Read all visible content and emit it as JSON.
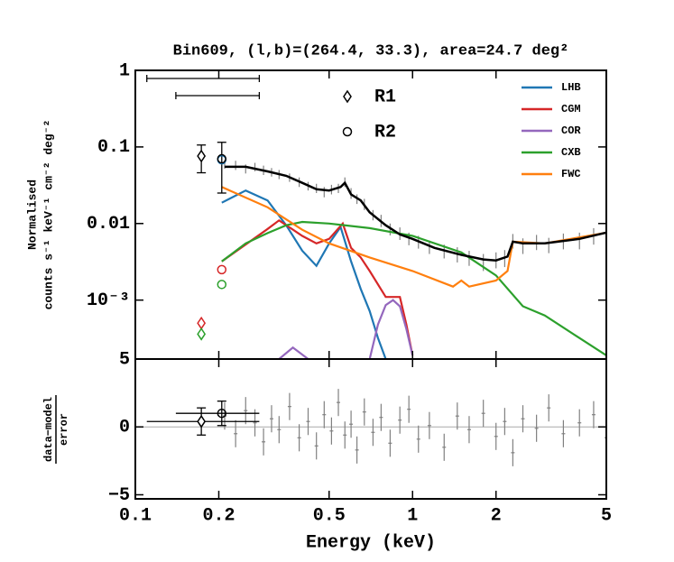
{
  "chart_data": {
    "type": "line",
    "title": "Bin609, (l,b)=(264.4, 33.3), area=24.7 deg²",
    "ylabel": [
      "Normalised",
      "counts s⁻¹ keV⁻¹ cm⁻² deg⁻²"
    ],
    "xlabel": "Energy (keV)",
    "xscale": "log",
    "yscale": "log",
    "xlim": [
      0.1,
      5
    ],
    "ylim": [
      0.00017,
      1
    ],
    "xticks": [
      0.1,
      0.2,
      0.5,
      1,
      2,
      5
    ],
    "yticks": [
      1,
      0.1,
      0.01,
      {
        "value": 0.001,
        "label": "10⁻³"
      }
    ],
    "legend": "upper right",
    "series": [
      {
        "name": "LHB",
        "color": "#1f77b4",
        "x": [
          0.205,
          0.25,
          0.3,
          0.35,
          0.4,
          0.45,
          0.5,
          0.55,
          0.6,
          0.65,
          0.7,
          0.75,
          0.8
        ],
        "values": [
          0.0187,
          0.027,
          0.02,
          0.0095,
          0.0044,
          0.0028,
          0.0055,
          0.009,
          0.0032,
          0.0014,
          0.00072,
          0.00032,
          0.00017
        ]
      },
      {
        "name": "CGM",
        "color": "#d62728",
        "x": [
          0.205,
          0.3,
          0.33,
          0.4,
          0.45,
          0.5,
          0.56,
          0.6,
          0.65,
          0.7,
          0.8,
          0.9,
          0.95,
          1.0
        ],
        "values": [
          0.0032,
          0.0085,
          0.011,
          0.0069,
          0.0055,
          0.0063,
          0.01,
          0.0048,
          0.0036,
          0.0024,
          0.0011,
          0.0011,
          0.00048,
          0.00019
        ]
      },
      {
        "name": "COR",
        "color": "#9467bd",
        "x": [
          0.33,
          0.37,
          0.42,
          0.55,
          0.7,
          0.75,
          0.8,
          0.85,
          0.9,
          0.95,
          1.0
        ],
        "values": [
          0.00017,
          0.00024,
          0.00017,
          null,
          0.00017,
          0.00048,
          0.00086,
          0.001,
          0.00083,
          0.00042,
          0.00019
        ]
      },
      {
        "name": "CXB",
        "color": "#2ca02c",
        "x": [
          0.205,
          0.25,
          0.3,
          0.35,
          0.4,
          0.5,
          0.7,
          1.0,
          1.5,
          2.0,
          2.5,
          3,
          4,
          5
        ],
        "values": [
          0.0032,
          0.0055,
          0.0075,
          0.0095,
          0.0105,
          0.01,
          0.0087,
          0.0069,
          0.0042,
          0.0021,
          0.00083,
          0.00063,
          0.00032,
          0.00019
        ]
      },
      {
        "name": "FWC",
        "color": "#ff7f0e",
        "x": [
          0.205,
          0.3,
          0.4,
          0.5,
          0.7,
          1.0,
          1.4,
          1.5,
          1.6,
          2.0,
          2.2,
          2.3,
          3,
          5
        ],
        "values": [
          0.03,
          0.0163,
          0.0083,
          0.0055,
          0.0036,
          0.0024,
          0.0015,
          0.0018,
          0.0015,
          0.0018,
          0.0024,
          0.0058,
          0.0055,
          0.0076
        ]
      }
    ],
    "model": {
      "color": "#000000",
      "x": [
        0.21,
        0.25,
        0.3,
        0.35,
        0.4,
        0.45,
        0.5,
        0.55,
        0.57,
        0.6,
        0.65,
        0.7,
        0.8,
        0.9,
        1.0,
        1.2,
        1.5,
        1.8,
        2.0,
        2.2,
        2.3,
        2.5,
        3,
        4,
        5
      ],
      "values": [
        0.055,
        0.055,
        0.048,
        0.042,
        0.034,
        0.028,
        0.027,
        0.03,
        0.034,
        0.024,
        0.02,
        0.014,
        0.0095,
        0.0072,
        0.0063,
        0.0048,
        0.0039,
        0.0034,
        0.0033,
        0.0037,
        0.0058,
        0.0055,
        0.0055,
        0.0063,
        0.0076
      ]
    },
    "data": {
      "color": "#808080",
      "x": [
        0.21,
        0.23,
        0.25,
        0.27,
        0.29,
        0.31,
        0.33,
        0.36,
        0.39,
        0.42,
        0.45,
        0.48,
        0.51,
        0.54,
        0.57,
        0.6,
        0.63,
        0.67,
        0.72,
        0.77,
        0.83,
        0.9,
        0.97,
        1.05,
        1.15,
        1.3,
        1.45,
        1.6,
        1.8,
        2.0,
        2.15,
        2.3,
        2.5,
        2.8,
        3.1,
        3.5,
        4.0,
        4.5,
        5.0
      ],
      "values": [
        0.06,
        0.058,
        0.052,
        0.055,
        0.05,
        0.047,
        0.044,
        0.04,
        0.035,
        0.031,
        0.029,
        0.026,
        0.028,
        0.029,
        0.035,
        0.025,
        0.021,
        0.018,
        0.013,
        0.011,
        0.0085,
        0.0075,
        0.0064,
        0.0058,
        0.005,
        0.0044,
        0.004,
        0.0036,
        0.0032,
        0.0034,
        0.0036,
        0.006,
        0.0052,
        0.0058,
        0.0053,
        0.006,
        0.0061,
        0.007,
        0.0075
      ],
      "errors": [
        0.008,
        0.008,
        0.007,
        0.007,
        0.007,
        0.006,
        0.006,
        0.005,
        0.005,
        0.004,
        0.004,
        0.004,
        0.004,
        0.004,
        0.005,
        0.004,
        0.003,
        0.003,
        0.002,
        0.002,
        0.0015,
        0.0014,
        0.0012,
        0.0011,
        0.001,
        0.0009,
        0.0009,
        0.0008,
        0.0008,
        0.0008,
        0.0009,
        0.0013,
        0.0012,
        0.0013,
        0.0012,
        0.0014,
        0.0015,
        0.0017,
        0.0019
      ]
    },
    "rosat": [
      {
        "name": "R1",
        "marker": "diamond",
        "x": 0.173,
        "band": [
          0.11,
          0.28
        ],
        "value": 0.076,
        "error": 0.03,
        "residual": 0.4,
        "residual_error": 1.0,
        "models": [
          {
            "color": "#d62728",
            "value": 0.0005
          },
          {
            "color": "#2ca02c",
            "value": 0.00036
          }
        ]
      },
      {
        "name": "R2",
        "marker": "circle",
        "x": 0.205,
        "band": [
          0.14,
          0.28
        ],
        "value": 0.07,
        "error": 0.045,
        "residual": 1.0,
        "residual_error": 0.9,
        "models": [
          {
            "color": "#1f77b4",
            "value": 0.068
          },
          {
            "color": "#d62728",
            "value": 0.0025
          },
          {
            "color": "#2ca02c",
            "value": 0.0016
          }
        ]
      }
    ],
    "residual": {
      "ylabel_numerator": "data−model",
      "ylabel_denominator": "error",
      "ylim": [
        -5.3,
        5
      ],
      "yticks": [
        {
          "value": -5,
          "label": "−5"
        },
        0,
        5
      ],
      "values": [
        0.8,
        -0.5,
        1.2,
        0.3,
        -1.1,
        0.6,
        -0.2,
        1.5,
        -0.8,
        0.4,
        -1.4,
        0.9,
        -0.3,
        1.8,
        -0.6,
        0.2,
        -1.7,
        1.1,
        -0.4,
        0.7,
        -1.2,
        0.5,
        1.3,
        -0.9,
        0.1,
        -1.5,
        0.8,
        -0.2,
        1.0,
        -0.7,
        0.4,
        -1.9,
        0.6,
        -0.1,
        1.4,
        -0.5,
        0.3,
        0.9,
        -0.8
      ],
      "errors": [
        1,
        1,
        1,
        1,
        1,
        1,
        1,
        1,
        1,
        1,
        1,
        1,
        1,
        1,
        1,
        1,
        1,
        1,
        1,
        1,
        1,
        1,
        1,
        1,
        1,
        1,
        1,
        1,
        1,
        1,
        1,
        1,
        1,
        1,
        1,
        1,
        1,
        1,
        1
      ]
    }
  }
}
